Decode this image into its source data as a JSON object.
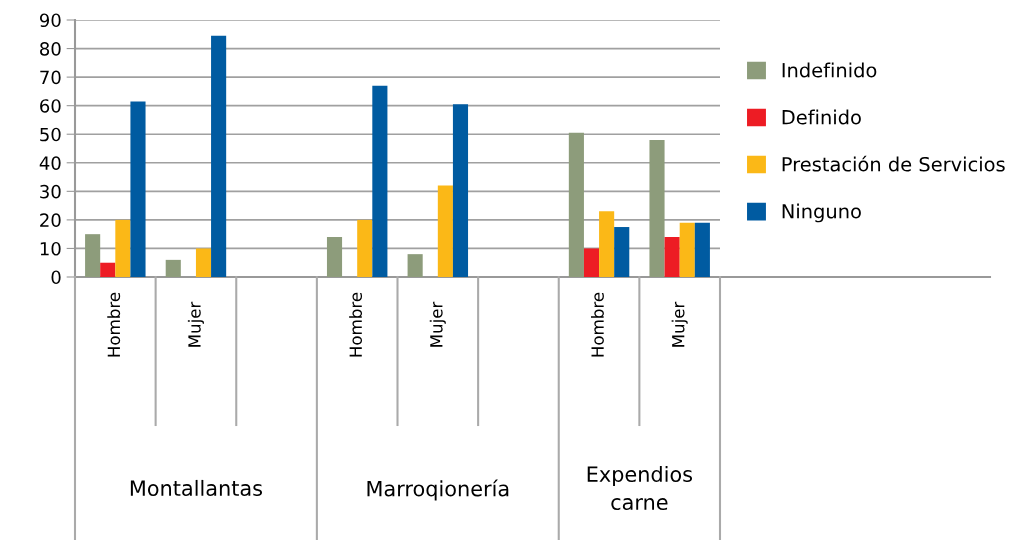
{
  "chart_data": {
    "type": "bar",
    "categories": [
      "Hombre",
      "Mujer",
      null,
      "Hombre",
      "Mujer",
      null,
      "Hombre",
      "Mujer"
    ],
    "series": [
      {
        "name": "Indefinido",
        "color": "#8d9c7b",
        "values": [
          15,
          6,
          null,
          14,
          8,
          null,
          50.5,
          48
        ]
      },
      {
        "name": "Definido",
        "color": "#ed1c24",
        "values": [
          5,
          null,
          null,
          null,
          null,
          null,
          10,
          14
        ]
      },
      {
        "name": "Prestación de Servicios",
        "color": "#fbb817",
        "values": [
          20,
          10,
          null,
          20,
          32,
          null,
          23,
          19
        ]
      },
      {
        "name": "Ninguno",
        "color": "#005ba1",
        "values": [
          61.5,
          84.5,
          null,
          67,
          60.5,
          null,
          17.5,
          19
        ]
      }
    ],
    "ylim": [
      0,
      90
    ],
    "yticks": [
      0,
      10,
      20,
      30,
      40,
      50,
      60,
      70,
      80,
      90
    ],
    "grid": "y",
    "legend": "right",
    "annotations": [
      "Montallantas",
      "Marroqionería",
      "Expendios\ncarne"
    ]
  }
}
